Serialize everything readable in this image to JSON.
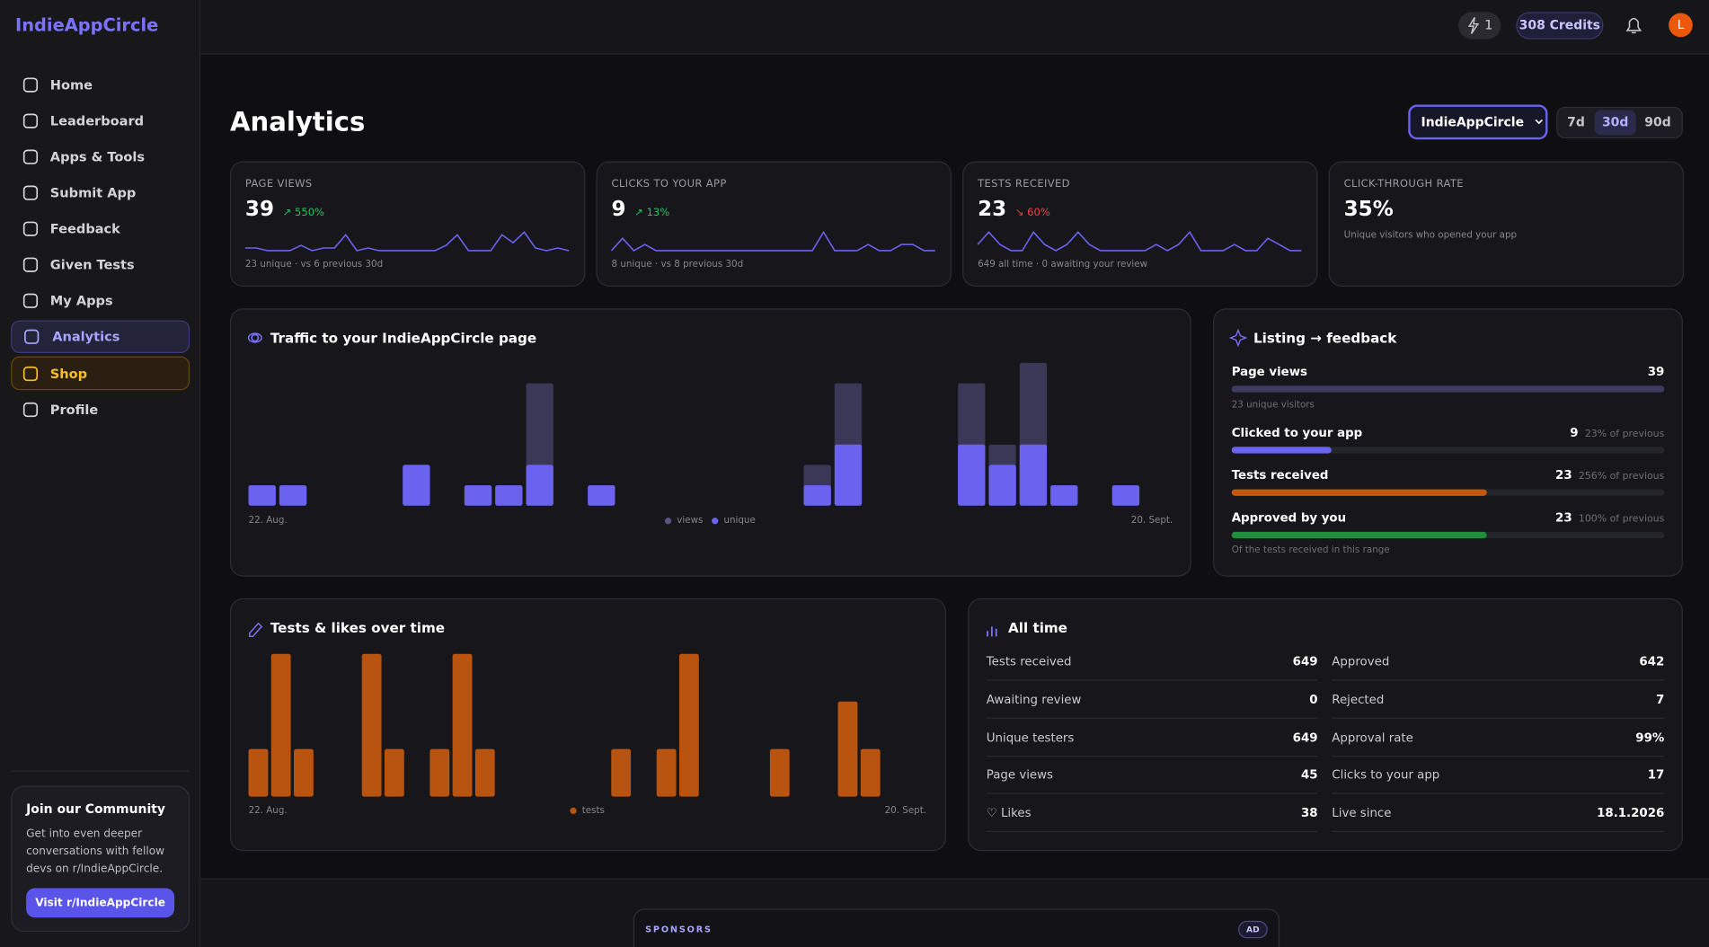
{
  "brand": "IndieAppCircle",
  "topbar": {
    "boost": "1",
    "credits": "308 Credits",
    "avatar": "L"
  },
  "nav": [
    "Home",
    "Leaderboard",
    "Apps & Tools",
    "Submit App",
    "Feedback",
    "Given Tests",
    "My Apps",
    "Analytics",
    "Shop",
    "Profile"
  ],
  "community": {
    "title": "Join our Community",
    "text": "Get into even deeper conversations with fellow devs on r/IndieAppCircle.",
    "button": "Visit r/IndieAppCircle"
  },
  "header": {
    "title": "Analytics",
    "app": "IndieAppCircle",
    "ranges": [
      "7d",
      "30d",
      "90d"
    ]
  },
  "stats": [
    {
      "label": "PAGE VIEWS",
      "value": 39,
      "change": "↗ 550%",
      "change_color": "#22c55e",
      "note": "23 unique · vs 6 previous 30d",
      "spark": [
        1,
        1,
        0,
        0,
        0,
        2,
        0,
        1,
        1,
        6,
        0,
        1,
        0,
        0,
        0,
        0,
        0,
        0,
        2,
        6,
        0,
        0,
        0,
        6,
        3,
        7,
        1,
        0,
        1,
        0
      ]
    },
    {
      "label": "CLICKS TO YOUR APP",
      "value": 9,
      "change": "↗ 13%",
      "change_color": "#22c55e",
      "note": "8 unique · vs 8 previous 30d",
      "spark": [
        0,
        2,
        0,
        1,
        0,
        0,
        0,
        0,
        0,
        0,
        0,
        0,
        0,
        0,
        0,
        0,
        0,
        0,
        0,
        3,
        0,
        0,
        0,
        1,
        0,
        0,
        1,
        1,
        0,
        0
      ]
    },
    {
      "label": "TESTS RECEIVED",
      "value": 23,
      "change": "↘ 60%",
      "change_color": "#ef4444",
      "note": "649 all time · 0 awaiting your review",
      "spark": [
        1,
        3,
        1,
        0,
        0,
        3,
        1,
        0,
        1,
        3,
        1,
        0,
        0,
        0,
        0,
        0,
        1,
        0,
        1,
        3,
        0,
        0,
        0,
        1,
        0,
        0,
        2,
        1,
        0,
        0
      ]
    },
    {
      "label": "CLICK-THROUGH RATE",
      "value": "35%",
      "note": "Unique visitors who opened your app"
    }
  ],
  "traffic": {
    "type": "bar",
    "title": "Traffic to your IndieAppCircle page",
    "x_start": "22. Aug.",
    "x_end": "20. Sept.",
    "series": [
      {
        "name": "views",
        "color": "#3a3757",
        "values": [
          1,
          1,
          0,
          0,
          0,
          2,
          0,
          1,
          1,
          6,
          0,
          1,
          0,
          0,
          0,
          0,
          0,
          0,
          2,
          6,
          0,
          0,
          0,
          6,
          3,
          7,
          1,
          0,
          1,
          0
        ]
      },
      {
        "name": "unique",
        "color": "#6b62f0",
        "values": [
          1,
          1,
          0,
          0,
          0,
          2,
          0,
          1,
          1,
          2,
          0,
          1,
          0,
          0,
          0,
          0,
          0,
          0,
          1,
          3,
          0,
          0,
          0,
          3,
          2,
          3,
          1,
          0,
          1,
          0
        ]
      }
    ]
  },
  "listing": {
    "title": "Listing → feedback",
    "rows": [
      {
        "label": "Page views",
        "value": 39,
        "color": "#3d3b62",
        "sub": "23 unique visitors"
      },
      {
        "label": "Clicked to your app",
        "value": 9,
        "note": "23% of previous",
        "color": "#6b62f0"
      },
      {
        "label": "Tests received",
        "value": 23,
        "note": "256% of previous",
        "color": "#c2570f"
      },
      {
        "label": "Approved by you",
        "value": 23,
        "note": "100% of previous",
        "color": "#1f8f3e",
        "sub": "Of the tests received in this range"
      }
    ]
  },
  "tests": {
    "type": "bar",
    "title": "Tests & likes over time",
    "x_start": "22. Aug.",
    "x_end": "20. Sept.",
    "series": [
      {
        "name": "tests",
        "color": "#b8540f",
        "values": [
          1,
          3,
          1,
          0,
          0,
          3,
          1,
          0,
          1,
          3,
          1,
          0,
          0,
          0,
          0,
          0,
          1,
          0,
          1,
          3,
          0,
          0,
          0,
          1,
          0,
          0,
          2,
          1,
          0,
          0
        ]
      }
    ]
  },
  "alltime": {
    "title": "All time",
    "rows": [
      [
        {
          "label": "Tests received",
          "value": "649"
        },
        {
          "label": "Approved",
          "value": "642"
        }
      ],
      [
        {
          "label": "Awaiting review",
          "value": "0"
        },
        {
          "label": "Rejected",
          "value": "7"
        }
      ],
      [
        {
          "label": "Unique testers",
          "value": "649"
        },
        {
          "label": "Approval rate",
          "value": "99%"
        }
      ],
      [
        {
          "label": "Page views",
          "value": "45"
        },
        {
          "label": "Clicks to your app",
          "value": "17"
        }
      ],
      [
        {
          "label": "♡ Likes",
          "value": "38"
        },
        {
          "label": "Live since",
          "value": "18.1.2026"
        }
      ]
    ]
  },
  "sponsors": {
    "label": "SPONSORS",
    "badge": "AD"
  }
}
